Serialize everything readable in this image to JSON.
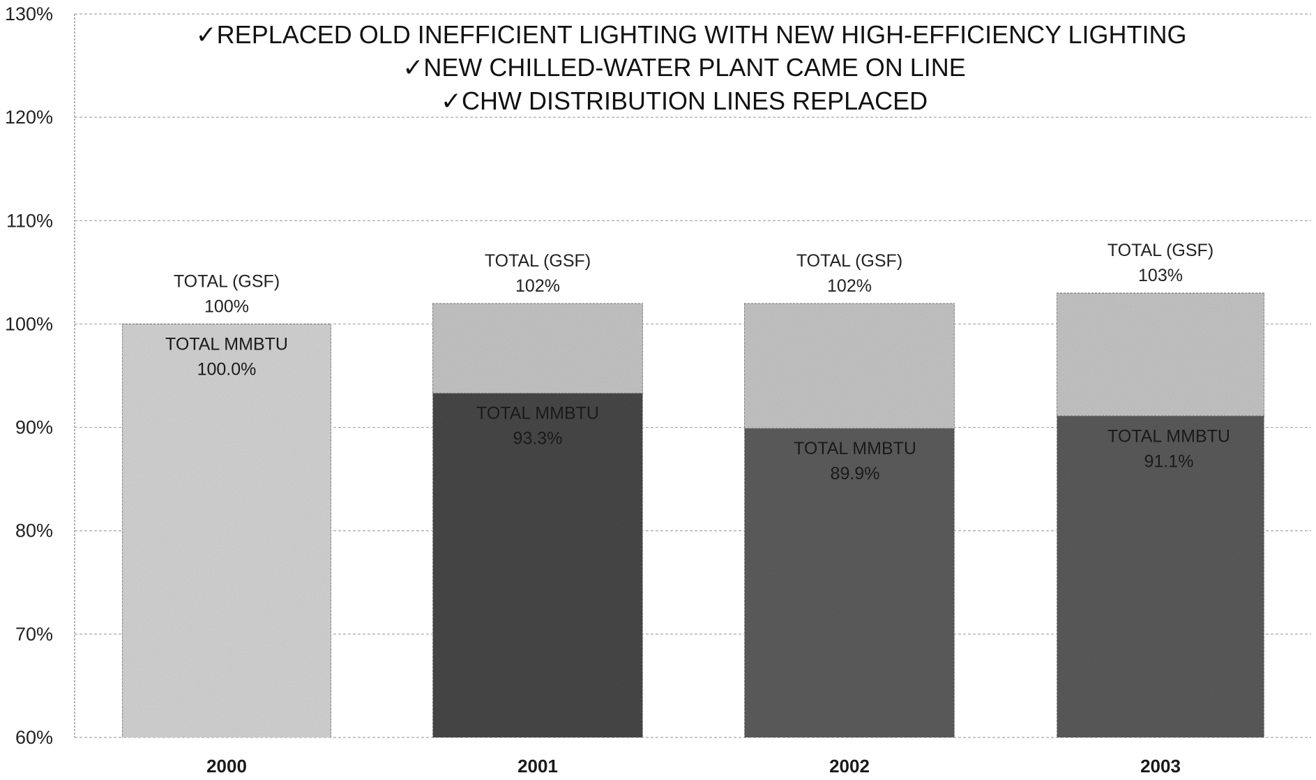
{
  "chart_data": {
    "type": "bar",
    "categories": [
      "2000",
      "2001",
      "2002",
      "2003"
    ],
    "series": [
      {
        "values": [
          100,
          102,
          102,
          103
        ]
      },
      {
        "values": [
          100.0,
          93.3,
          89.9,
          91.1
        ]
      }
    ],
    "bar_labels": [
      {
        "gsf_text": "TOTAL (GSF)",
        "gsf_pct": "100%",
        "mmbtu_text": "TOTAL MMBTU",
        "mmbtu_pct": "100.0%"
      },
      {
        "gsf_text": "TOTAL (GSF)",
        "gsf_pct": "102%",
        "mmbtu_text": "TOTAL MMBTU",
        "mmbtu_pct": "93.3%"
      },
      {
        "gsf_text": "TOTAL (GSF)",
        "gsf_pct": "102%",
        "mmbtu_text": "TOTAL MMBTU",
        "mmbtu_pct": "89.9%"
      },
      {
        "gsf_text": "TOTAL (GSF)",
        "gsf_pct": "103%",
        "mmbtu_text": "TOTAL MMBTU",
        "mmbtu_pct": "91.1%"
      }
    ],
    "y_ticks": [
      "60%",
      "70%",
      "80%",
      "90%",
      "100%",
      "110%",
      "120%",
      "130%"
    ],
    "ylim": [
      60,
      130
    ],
    "y_tick_step": 10,
    "grid": true,
    "annotations": [
      "✓REPLACED OLD INEFFICIENT LIGHTING WITH NEW HIGH-EFFICIENCY LIGHTING",
      "✓NEW CHILLED-WATER PLANT CAME ON LINE",
      "✓CHW DISTRIBUTION LINES REPLACED"
    ],
    "colors": {
      "gsf_fill": "#c4c4c4",
      "mmbtu_fill_2000": "#d2d2d2",
      "mmbtu_fill_2001": "#474747",
      "mmbtu_fill_2002": "#5c5c5c",
      "mmbtu_fill_2003": "#5a5a5a",
      "grid": "#a8a8a8",
      "text": "#222222"
    }
  }
}
